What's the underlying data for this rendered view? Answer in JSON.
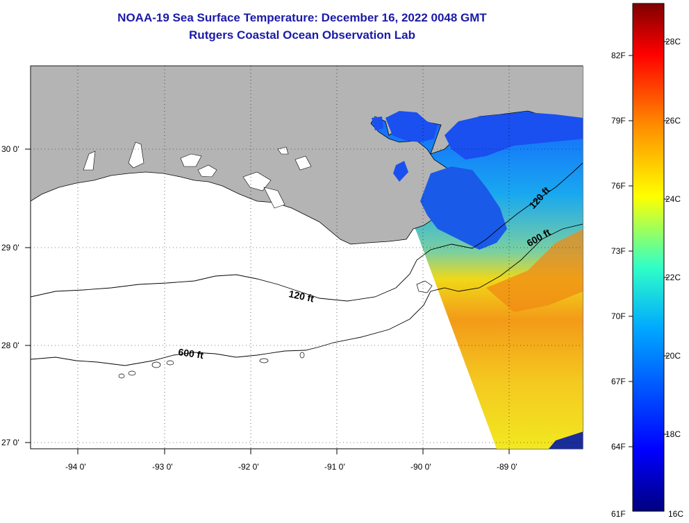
{
  "header": {
    "title_line1": "NOAA-19 Sea Surface Temperature:  December 16, 2022 0048 GMT",
    "title_line2": "Rutgers Coastal Ocean Observation Lab"
  },
  "axes": {
    "lon_labels": [
      "-94 0'",
      "-93 0'",
      "-92 0'",
      "-91 0'",
      "-90 0'",
      "-89 0'"
    ],
    "lat_labels": [
      "30 0'",
      "29 0'",
      "28 0'",
      "27 0'"
    ]
  },
  "contours": {
    "label_120_west": "120 ft",
    "label_600_west": "600 ft",
    "label_120_east": "120 ft",
    "label_600_east": "600 ft"
  },
  "colorbar": {
    "fahrenheit": [
      "82F",
      "79F",
      "76F",
      "73F",
      "70F",
      "67F",
      "64F",
      "61F"
    ],
    "celsius": [
      "28C",
      "26C",
      "24C",
      "22C",
      "20C",
      "18C",
      "16C"
    ]
  },
  "colors": {
    "land": "#b4b4b4",
    "water_no_data": "#ffffff",
    "title": "#1a1aa8"
  }
}
